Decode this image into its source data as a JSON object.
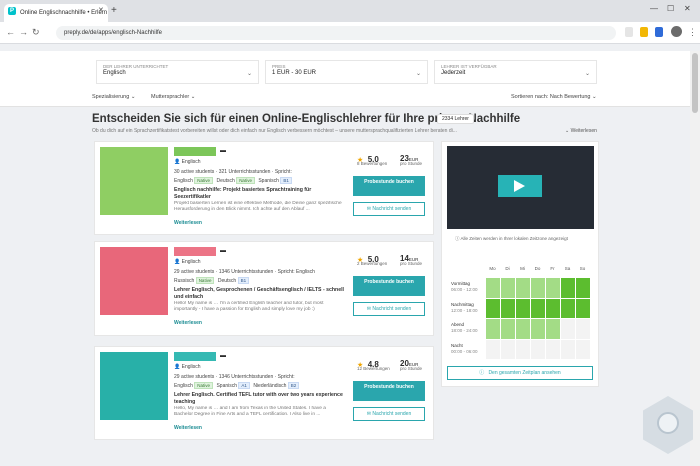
{
  "browser": {
    "tab_title": "Online Englischnachhilfe • Erlern",
    "url": "preply.de/de/apps/englisch-Nachhilfe"
  },
  "filters": [
    {
      "label": "Der Lehrer unterrichtet",
      "value": "Englisch"
    },
    {
      "label": "Preis",
      "value": "1 EUR - 30 EUR"
    },
    {
      "label": "Lehrer ist verfügbar",
      "value": "Jederzeit"
    }
  ],
  "subfilters": {
    "spezialisierung": "Spezialisierung",
    "muttersprachler": "Muttersprachler",
    "sort": "Sortieren nach: Nach Bewertung"
  },
  "heading": {
    "title": "Entscheiden Sie sich für einen Online-Englischlehrer für Ihre private Nachhilfe",
    "count": "2334 Lehrer",
    "subtext": "Ob du dich auf ein Sprachzertifikatstest vorbereiten willst oder dich einfach nur Englisch verbessern möchtest – unsere muttersprachqualifizierten Lehrer beraten di...",
    "more": "Weiterlesen"
  },
  "teachers": [
    {
      "subject": "Englisch",
      "stats": "30 active students · 321 Unterrichtsstunden · Spricht:",
      "langs": [
        [
          "Englisch",
          "Native"
        ],
        [
          "Deutsch",
          "Native"
        ],
        [
          "Spanisch",
          "B1"
        ]
      ],
      "title": "Englisch nachhilfe: Projekt basiertes Sprachtraining für Seezertifikatler",
      "desc": "Projekt basierten Lernen ist eine effektive Methode, die Deine ganz spezifische Herausforderung in den Blick nimmt. Ich achte auf den Ablauf ...",
      "more": "Weiterlesen",
      "rating": "5.0",
      "reviews": "8 Bewertungen",
      "price": "23",
      "currency": "EUR",
      "per": "pro Stunde",
      "book": "Probestunde buchen",
      "message": "Nachricht senden",
      "color": "#8fce63",
      "namecolor": "#7cc659"
    },
    {
      "subject": "Englisch",
      "stats": "29 active students · 1346 Unterrichtsstunden · Spricht: Englisch",
      "langs": [
        [
          "Russisch",
          "Native"
        ],
        [
          "Deutsch",
          "B1"
        ]
      ],
      "title": "Lehrer Englisch, Gesprochenen / Geschäftsenglisch / IELTS - schnell und einfach",
      "desc": "Hello! My name is … I'm a certified English teacher and tutor, but most importantly - I have a passion for English and simply love my job :)",
      "more": "Weiterlesen",
      "rating": "5.0",
      "reviews": "2 Bewertungen",
      "price": "14",
      "currency": "EUR",
      "per": "pro Stunde",
      "book": "Probestunde buchen",
      "message": "Nachricht senden",
      "color": "#e8677a",
      "namecolor": "#ec7486"
    },
    {
      "subject": "Englisch",
      "stats": "29 active students · 1346 Unterrichtsstunden · Spricht:",
      "langs": [
        [
          "Englisch",
          "Native"
        ],
        [
          "Spanisch",
          "A1"
        ],
        [
          "Niederländisch",
          "B2"
        ]
      ],
      "title": "Lehrer Englisch. Certified TEFL tutor with over two years experience teaching",
      "desc": "Hello, My name is … and I am from Texas in the United States. I have a Bachelor Degree in Fine Arts and a TEFL certification. I Also live in ...",
      "more": "Weiterlesen",
      "rating": "4.8",
      "reviews": "12 Bewertungen",
      "price": "20",
      "currency": "EUR",
      "per": "pro Stunde",
      "book": "Probestunde buchen",
      "message": "Nachricht senden",
      "color": "#28b0a8",
      "namecolor": "#35b9b3"
    }
  ],
  "schedule": {
    "timezone_note": "Alle Zeiten werden in Ihrer lokalen Zeitzone angezeigt",
    "days": [
      "Mo",
      "Di",
      "Mi",
      "Do",
      "Fr",
      "Sa",
      "So"
    ],
    "slots": [
      {
        "label": "Vormittag",
        "time": "06:00 - 12:00",
        "levels": [
          1,
          1,
          1,
          1,
          1,
          2,
          2
        ]
      },
      {
        "label": "Nachmittag",
        "time": "12:00 - 18:00",
        "levels": [
          2,
          2,
          2,
          2,
          2,
          2,
          2
        ]
      },
      {
        "label": "Abend",
        "time": "18:00 - 24:00",
        "levels": [
          1,
          1,
          1,
          1,
          1,
          0,
          0
        ]
      },
      {
        "label": "Nacht",
        "time": "00:00 - 06:00",
        "levels": [
          0,
          0,
          0,
          0,
          0,
          0,
          0
        ]
      }
    ],
    "full_schedule": "Den gesamten Zeitplan ansehen"
  },
  "colors": {
    "accent": "#2aa6ad",
    "avail_low": "#a3dc86",
    "avail_high": "#5cbd2f"
  }
}
